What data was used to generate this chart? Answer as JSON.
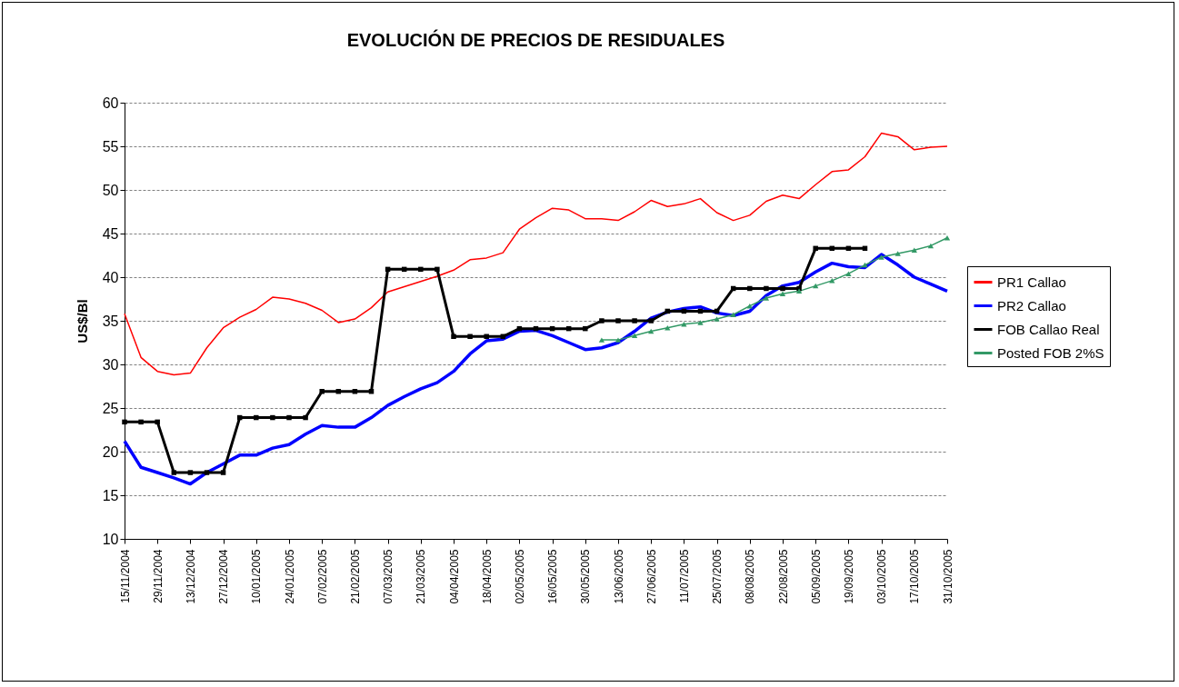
{
  "chart_data": {
    "type": "line",
    "title": "EVOLUCIÓN DE PRECIOS DE RESIDUALES",
    "ylabel": "US$/Bl",
    "categories": [
      "15/11/2004",
      null,
      "29/11/2004",
      null,
      "13/12/2004",
      null,
      "27/12/2004",
      null,
      "10/01/2005",
      null,
      "24/01/2005",
      null,
      "07/02/2005",
      null,
      "21/02/2005",
      null,
      "07/03/2005",
      null,
      "21/03/2005",
      null,
      "04/04/2005",
      null,
      "18/04/2005",
      null,
      "02/05/2005",
      null,
      "16/05/2005",
      null,
      "30/05/2005",
      null,
      "13/06/2005",
      null,
      "27/06/2005",
      null,
      "11/07/2005",
      null,
      "25/07/2005",
      null,
      "08/08/2005",
      null,
      "22/08/2005",
      null,
      "05/09/2005",
      null,
      "19/09/2005",
      null,
      "03/10/2005",
      null,
      "17/10/2005",
      null,
      "31/10/2005"
    ],
    "series": [
      {
        "name": "PR1 Callao",
        "color": "#ff0000",
        "values": [
          35.8,
          30.8,
          29.2,
          28.8,
          29.0,
          31.9,
          34.2,
          35.4,
          36.3,
          37.7,
          37.5,
          37.0,
          36.2,
          34.8,
          35.2,
          36.5,
          38.3,
          38.9,
          39.5,
          40.1,
          40.8,
          42.0,
          42.2,
          42.8,
          45.5,
          46.8,
          47.9,
          47.7,
          46.7,
          46.7,
          46.5,
          47.5,
          48.8,
          48.1,
          48.4,
          49.0,
          47.4,
          46.5,
          47.1,
          48.7,
          49.4,
          49.0,
          50.6,
          52.1,
          52.3,
          53.8,
          56.5,
          56.1,
          54.6,
          54.9,
          55.0
        ]
      },
      {
        "name": "PR2 Callao",
        "color": "#0000ff",
        "values": [
          21.2,
          18.2,
          17.6,
          17.0,
          16.3,
          17.6,
          18.6,
          19.6,
          19.6,
          20.4,
          20.8,
          22.0,
          23.0,
          22.8,
          22.8,
          23.9,
          25.3,
          26.3,
          27.2,
          27.9,
          29.2,
          31.2,
          32.7,
          32.9,
          33.8,
          33.9,
          33.3,
          32.5,
          31.7,
          31.9,
          32.5,
          33.8,
          35.3,
          36.0,
          36.4,
          36.6,
          35.9,
          35.6,
          36.1,
          37.9,
          39.0,
          39.4,
          40.6,
          41.6,
          41.2,
          41.1,
          42.6,
          41.4,
          40.0,
          39.2,
          38.4
        ]
      },
      {
        "name": "FOB Callao Real",
        "color": "#000000",
        "marker": "square",
        "values": [
          23.4,
          23.4,
          23.4,
          17.6,
          17.6,
          17.6,
          17.6,
          23.9,
          23.9,
          23.9,
          23.9,
          23.9,
          26.9,
          26.9,
          26.9,
          26.9,
          40.9,
          40.9,
          40.9,
          40.9,
          33.2,
          33.2,
          33.2,
          33.2,
          34.1,
          34.1,
          34.1,
          34.1,
          34.1,
          35.0,
          35.0,
          35.0,
          35.0,
          36.1,
          36.1,
          36.1,
          36.1,
          38.7,
          38.7,
          38.7,
          38.7,
          38.7,
          43.3,
          43.3,
          43.3,
          43.3,
          null,
          null,
          null,
          null,
          null
        ]
      },
      {
        "name": "Posted FOB 2%S",
        "color": "#339966",
        "marker": "triangle",
        "values": [
          null,
          null,
          null,
          null,
          null,
          null,
          null,
          null,
          null,
          null,
          null,
          null,
          null,
          null,
          null,
          null,
          null,
          null,
          null,
          null,
          null,
          null,
          null,
          null,
          null,
          null,
          null,
          null,
          null,
          32.8,
          32.8,
          33.3,
          33.8,
          34.2,
          34.6,
          34.8,
          35.2,
          35.7,
          36.7,
          37.6,
          38.1,
          38.4,
          39.0,
          39.6,
          40.4,
          41.4,
          42.3,
          42.7,
          43.1,
          43.6,
          44.5
        ]
      }
    ],
    "ylim": [
      10,
      60
    ],
    "yticks": [
      10,
      15,
      20,
      25,
      30,
      35,
      40,
      45,
      50,
      55,
      60
    ],
    "grid": "y",
    "legend": "right"
  }
}
